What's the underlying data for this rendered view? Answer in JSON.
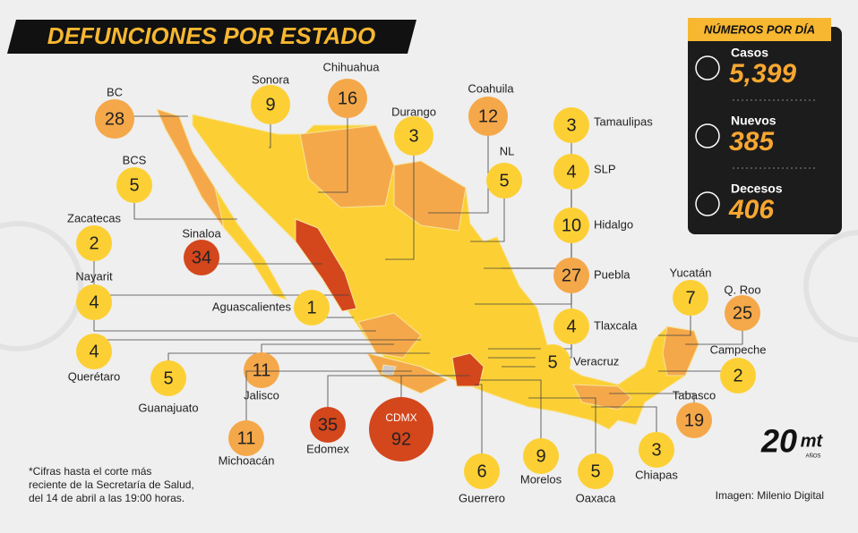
{
  "header": {
    "title": "DEFUNCIONES POR ESTADO"
  },
  "daily_panel": {
    "title": "NÚMEROS POR DÍA",
    "items": [
      {
        "label": "Casos",
        "value": "5,399"
      },
      {
        "label": "Nuevos",
        "value": "385"
      },
      {
        "label": "Decesos",
        "value": "406"
      }
    ]
  },
  "states": [
    {
      "name": "BC",
      "value": 28,
      "color": "#f5a84a"
    },
    {
      "name": "Sonora",
      "value": 9,
      "color": "#fcd034"
    },
    {
      "name": "Chihuahua",
      "value": 16,
      "color": "#f5a84a"
    },
    {
      "name": "Durango",
      "value": 3,
      "color": "#fcd034"
    },
    {
      "name": "Coahuila",
      "value": 12,
      "color": "#f5a84a"
    },
    {
      "name": "Tamaulipas",
      "value": 3,
      "color": "#fcd034"
    },
    {
      "name": "NL",
      "value": 5,
      "color": "#fcd034"
    },
    {
      "name": "SLP",
      "value": 4,
      "color": "#fcd034"
    },
    {
      "name": "Hidalgo",
      "value": 10,
      "color": "#fcd034"
    },
    {
      "name": "Puebla",
      "value": 27,
      "color": "#f5a84a"
    },
    {
      "name": "Tlaxcala",
      "value": 4,
      "color": "#fcd034"
    },
    {
      "name": "Veracruz",
      "value": 5,
      "color": "#fcd034"
    },
    {
      "name": "BCS",
      "value": 5,
      "color": "#fcd034"
    },
    {
      "name": "Zacatecas",
      "value": 2,
      "color": "#fcd034"
    },
    {
      "name": "Sinaloa",
      "value": 34,
      "color": "#d4461c"
    },
    {
      "name": "Nayarit",
      "value": 4,
      "color": "#fcd034"
    },
    {
      "name": "Aguascalientes",
      "value": 1,
      "color": "#fcd034"
    },
    {
      "name": "Querétaro",
      "value": 4,
      "color": "#fcd034"
    },
    {
      "name": "Guanajuato",
      "value": 5,
      "color": "#fcd034"
    },
    {
      "name": "Jalisco",
      "value": 11,
      "color": "#f5a84a"
    },
    {
      "name": "Michoacán",
      "value": 11,
      "color": "#f5a84a"
    },
    {
      "name": "Edomex",
      "value": 35,
      "color": "#d4461c"
    },
    {
      "name": "CDMX",
      "value": 92,
      "color": "#d4461c"
    },
    {
      "name": "Guerrero",
      "value": 6,
      "color": "#fcd034"
    },
    {
      "name": "Morelos",
      "value": 9,
      "color": "#fcd034"
    },
    {
      "name": "Oaxaca",
      "value": 5,
      "color": "#fcd034"
    },
    {
      "name": "Chiapas",
      "value": 3,
      "color": "#fcd034"
    },
    {
      "name": "Tabasco",
      "value": 19,
      "color": "#f5a84a"
    },
    {
      "name": "Campeche",
      "value": 2,
      "color": "#fcd034"
    },
    {
      "name": "Q. Roo",
      "value": 25,
      "color": "#f5a84a"
    },
    {
      "name": "Yucatán",
      "value": 7,
      "color": "#fcd034"
    }
  ],
  "footnote": [
    "*Cifras hasta el corte más",
    "reciente de la Secretaría de Salud,",
    "del 14 de abril a las 19:00 horas."
  ],
  "credit": "Imagen: Milenio Digital",
  "logo": {
    "number": "20",
    "brand": "mt",
    "sub": "AÑOS"
  }
}
